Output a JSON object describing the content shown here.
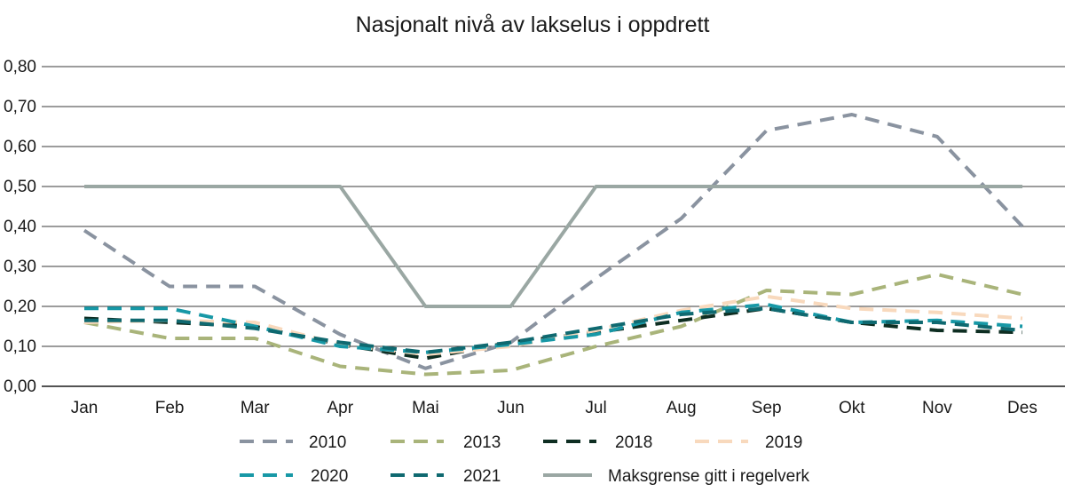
{
  "chart_data": {
    "type": "line",
    "title": "Nasjonalt nivå av lakselus i oppdrett",
    "xlabel": "",
    "ylabel": "",
    "categories": [
      "Jan",
      "Feb",
      "Mar",
      "Apr",
      "Mai",
      "Jun",
      "Jul",
      "Aug",
      "Sep",
      "Okt",
      "Nov",
      "Des"
    ],
    "ylim": [
      0,
      0.8
    ],
    "yticks": [
      "0,00",
      "0,10",
      "0,20",
      "0,30",
      "0,40",
      "0,50",
      "0,60",
      "0,70",
      "0,80"
    ],
    "grid": true,
    "legend_position": "bottom",
    "series": [
      {
        "name": "2010",
        "color": "#8a93a0",
        "dash": true,
        "values": [
          0.39,
          0.25,
          0.25,
          0.13,
          0.045,
          0.11,
          0.27,
          0.42,
          0.64,
          0.68,
          0.625,
          0.4
        ]
      },
      {
        "name": "2013",
        "color": "#a9b47a",
        "dash": true,
        "values": [
          0.16,
          0.12,
          0.12,
          0.05,
          0.03,
          0.04,
          0.1,
          0.15,
          0.24,
          0.23,
          0.28,
          0.23
        ]
      },
      {
        "name": "2018",
        "color": "#0e2e22",
        "dash": true,
        "values": [
          0.17,
          0.16,
          0.15,
          0.105,
          0.07,
          0.11,
          0.135,
          0.165,
          0.195,
          0.16,
          0.14,
          0.135
        ]
      },
      {
        "name": "2019",
        "color": "#f8d9bd",
        "dash": true,
        "values": [
          0.16,
          0.165,
          0.16,
          0.105,
          0.08,
          0.1,
          0.14,
          0.19,
          0.225,
          0.195,
          0.185,
          0.17
        ]
      },
      {
        "name": "2020",
        "color": "#1798a6",
        "dash": true,
        "values": [
          0.195,
          0.195,
          0.15,
          0.1,
          0.085,
          0.105,
          0.13,
          0.185,
          0.205,
          0.16,
          0.165,
          0.15
        ]
      },
      {
        "name": "2021",
        "color": "#0f6970",
        "dash": true,
        "values": [
          0.165,
          0.165,
          0.145,
          0.11,
          0.085,
          0.11,
          0.145,
          0.18,
          0.195,
          0.16,
          0.16,
          0.14
        ]
      },
      {
        "name": "Maksgrense gitt i regelverk",
        "color": "#9aa7a3",
        "dash": false,
        "values": [
          0.5,
          0.5,
          0.5,
          0.5,
          0.2,
          0.2,
          0.5,
          0.5,
          0.5,
          0.5,
          0.5,
          0.5
        ]
      }
    ]
  }
}
